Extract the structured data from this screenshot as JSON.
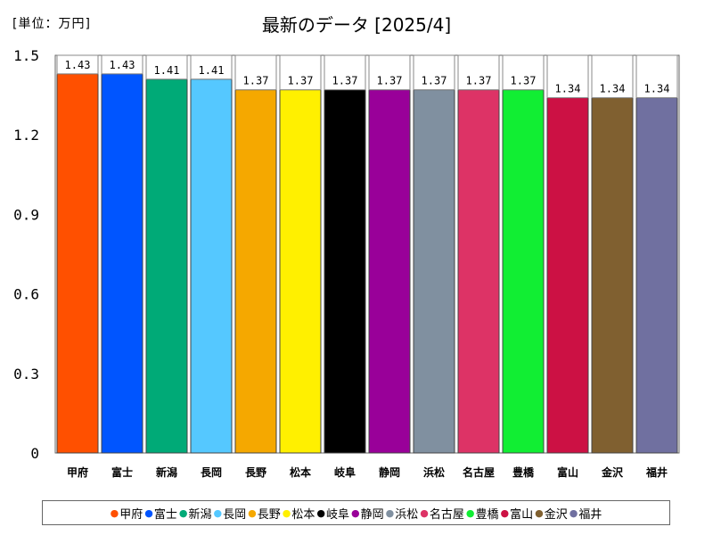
{
  "unit_label": "[単位：万円]",
  "chart_data": {
    "type": "bar",
    "title": "最新のデータ [2025/4]",
    "xlabel": "",
    "ylabel": "",
    "ylim": [
      0,
      1.5
    ],
    "yticks": [
      "0",
      "0.3",
      "0.6",
      "0.9",
      "1.2",
      "1.5"
    ],
    "grid": false,
    "legend_position": "bottom",
    "categories": [
      "甲府",
      "富士",
      "新潟",
      "長岡",
      "長野",
      "松本",
      "岐阜",
      "静岡",
      "浜松",
      "名古屋",
      "豊橋",
      "富山",
      "金沢",
      "福井"
    ],
    "values": [
      1.43,
      1.43,
      1.41,
      1.41,
      1.37,
      1.37,
      1.37,
      1.37,
      1.37,
      1.37,
      1.37,
      1.34,
      1.34,
      1.34
    ],
    "value_labels": [
      "1.43",
      "1.43",
      "1.41",
      "1.41",
      "1.37",
      "1.37",
      "1.37",
      "1.37",
      "1.37",
      "1.37",
      "1.37",
      "1.34",
      "1.34",
      "1.34"
    ],
    "colors": [
      "#FF5000",
      "#0055FF",
      "#00AA77",
      "#55C8FF",
      "#F5A800",
      "#FFF000",
      "#000000",
      "#990099",
      "#8090A0",
      "#DD3366",
      "#11EE33",
      "#CC1144",
      "#806030",
      "#7070A0"
    ]
  }
}
